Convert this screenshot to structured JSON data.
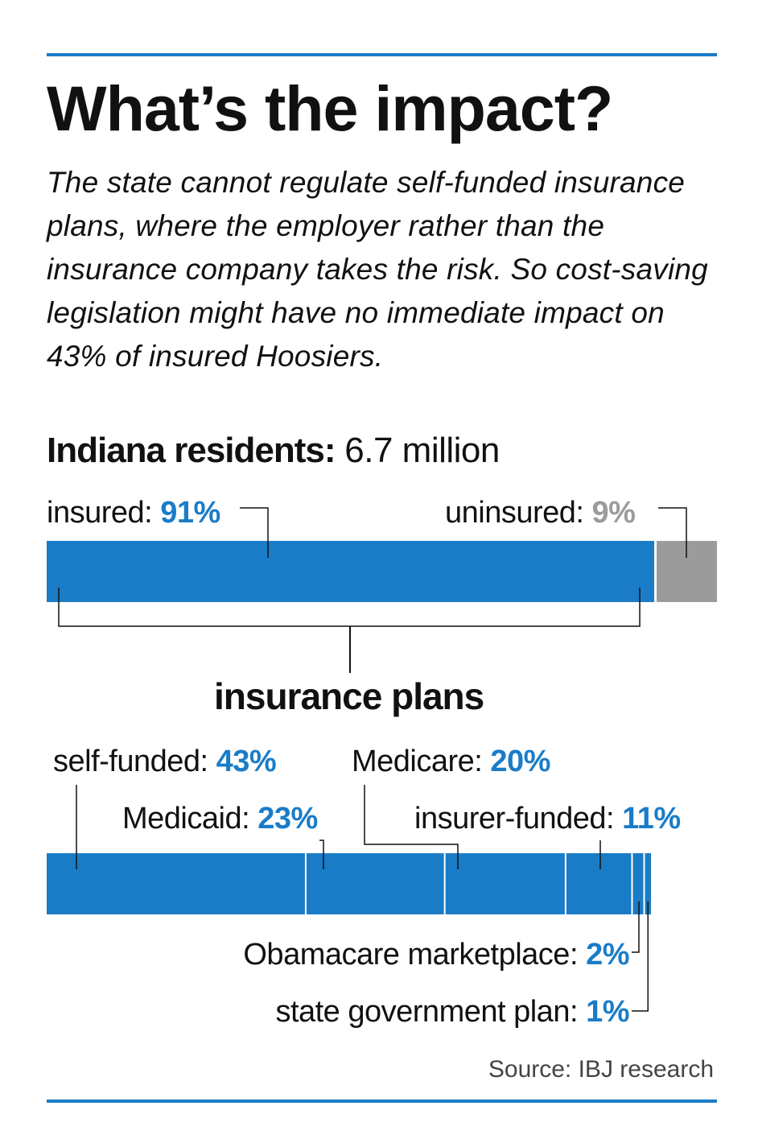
{
  "title": "What’s the impact?",
  "subtitle": "The state cannot regulate self-funded insurance plans, where the employer rather than the insurance company takes the risk. So cost-saving legislation might have no immediate impact on 43% of insured Hoosiers.",
  "residents": {
    "label": "Indiana residents:",
    "value": "6.7 million"
  },
  "plans_heading": "insurance plans",
  "source": "Source: IBJ research",
  "colors": {
    "blue": "#1a7cc7",
    "grey": "#9b9b9b",
    "rule": "#1a7cc7"
  },
  "chart_data": [
    {
      "type": "bar",
      "categories": [
        "insured",
        "uninsured"
      ],
      "values": [
        91,
        9
      ],
      "labels": {
        "insured": "insured:",
        "uninsured": "uninsured:"
      },
      "value_labels": {
        "insured": "91%",
        "uninsured": "9%"
      }
    },
    {
      "type": "bar",
      "categories": [
        "self-funded",
        "Medicaid",
        "Medicare",
        "insurer-funded",
        "Obamacare marketplace",
        "state government plan"
      ],
      "values": [
        43,
        23,
        20,
        11,
        2,
        1
      ],
      "labels": {
        "self_funded": "self-funded:",
        "medicaid": "Medicaid:",
        "medicare": "Medicare:",
        "insurer_funded": "insurer-funded:",
        "obamacare": "Obamacare marketplace:",
        "state": "state government plan:"
      },
      "value_labels": {
        "self_funded": "43%",
        "medicaid": "23%",
        "medicare": "20%",
        "insurer_funded": "11%",
        "obamacare": "2%",
        "state": "1%"
      }
    }
  ]
}
